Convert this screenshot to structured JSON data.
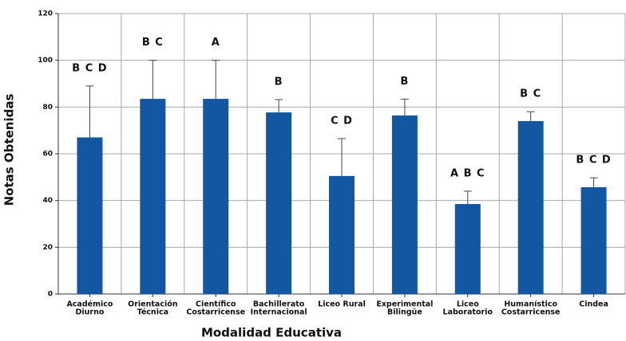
{
  "chart_data": {
    "type": "bar",
    "x_label": "Modalidad Educativa",
    "y_label": "Notas Obtenidas",
    "categories": [
      [
        "Académico",
        "Diurno"
      ],
      [
        "Orientación",
        "Técnica"
      ],
      [
        "Científico",
        "Costarricense"
      ],
      [
        "Bachillerato",
        "Internacional"
      ],
      [
        "Liceo Rural"
      ],
      [
        "Experimental",
        "Bilingüe"
      ],
      [
        "Liceo",
        "Laboratorio"
      ],
      [
        "Humanístico",
        "Costarricense"
      ],
      [
        "Cindea"
      ]
    ],
    "values": [
      67,
      83.5,
      83.5,
      77.7,
      50.5,
      76.4,
      38.5,
      74,
      45.7
    ],
    "errors": [
      22,
      16.5,
      16.5,
      5.5,
      16,
      7,
      5.5,
      4,
      4
    ],
    "annotations": [
      "B C D",
      "B C",
      "A",
      "B",
      "C D",
      "B",
      "A B C",
      "B C",
      "B C D"
    ],
    "color": "#1357a3",
    "ylim": [
      0,
      120
    ],
    "yticks": [
      0,
      20,
      40,
      60,
      80,
      100,
      120
    ],
    "grid": true
  }
}
